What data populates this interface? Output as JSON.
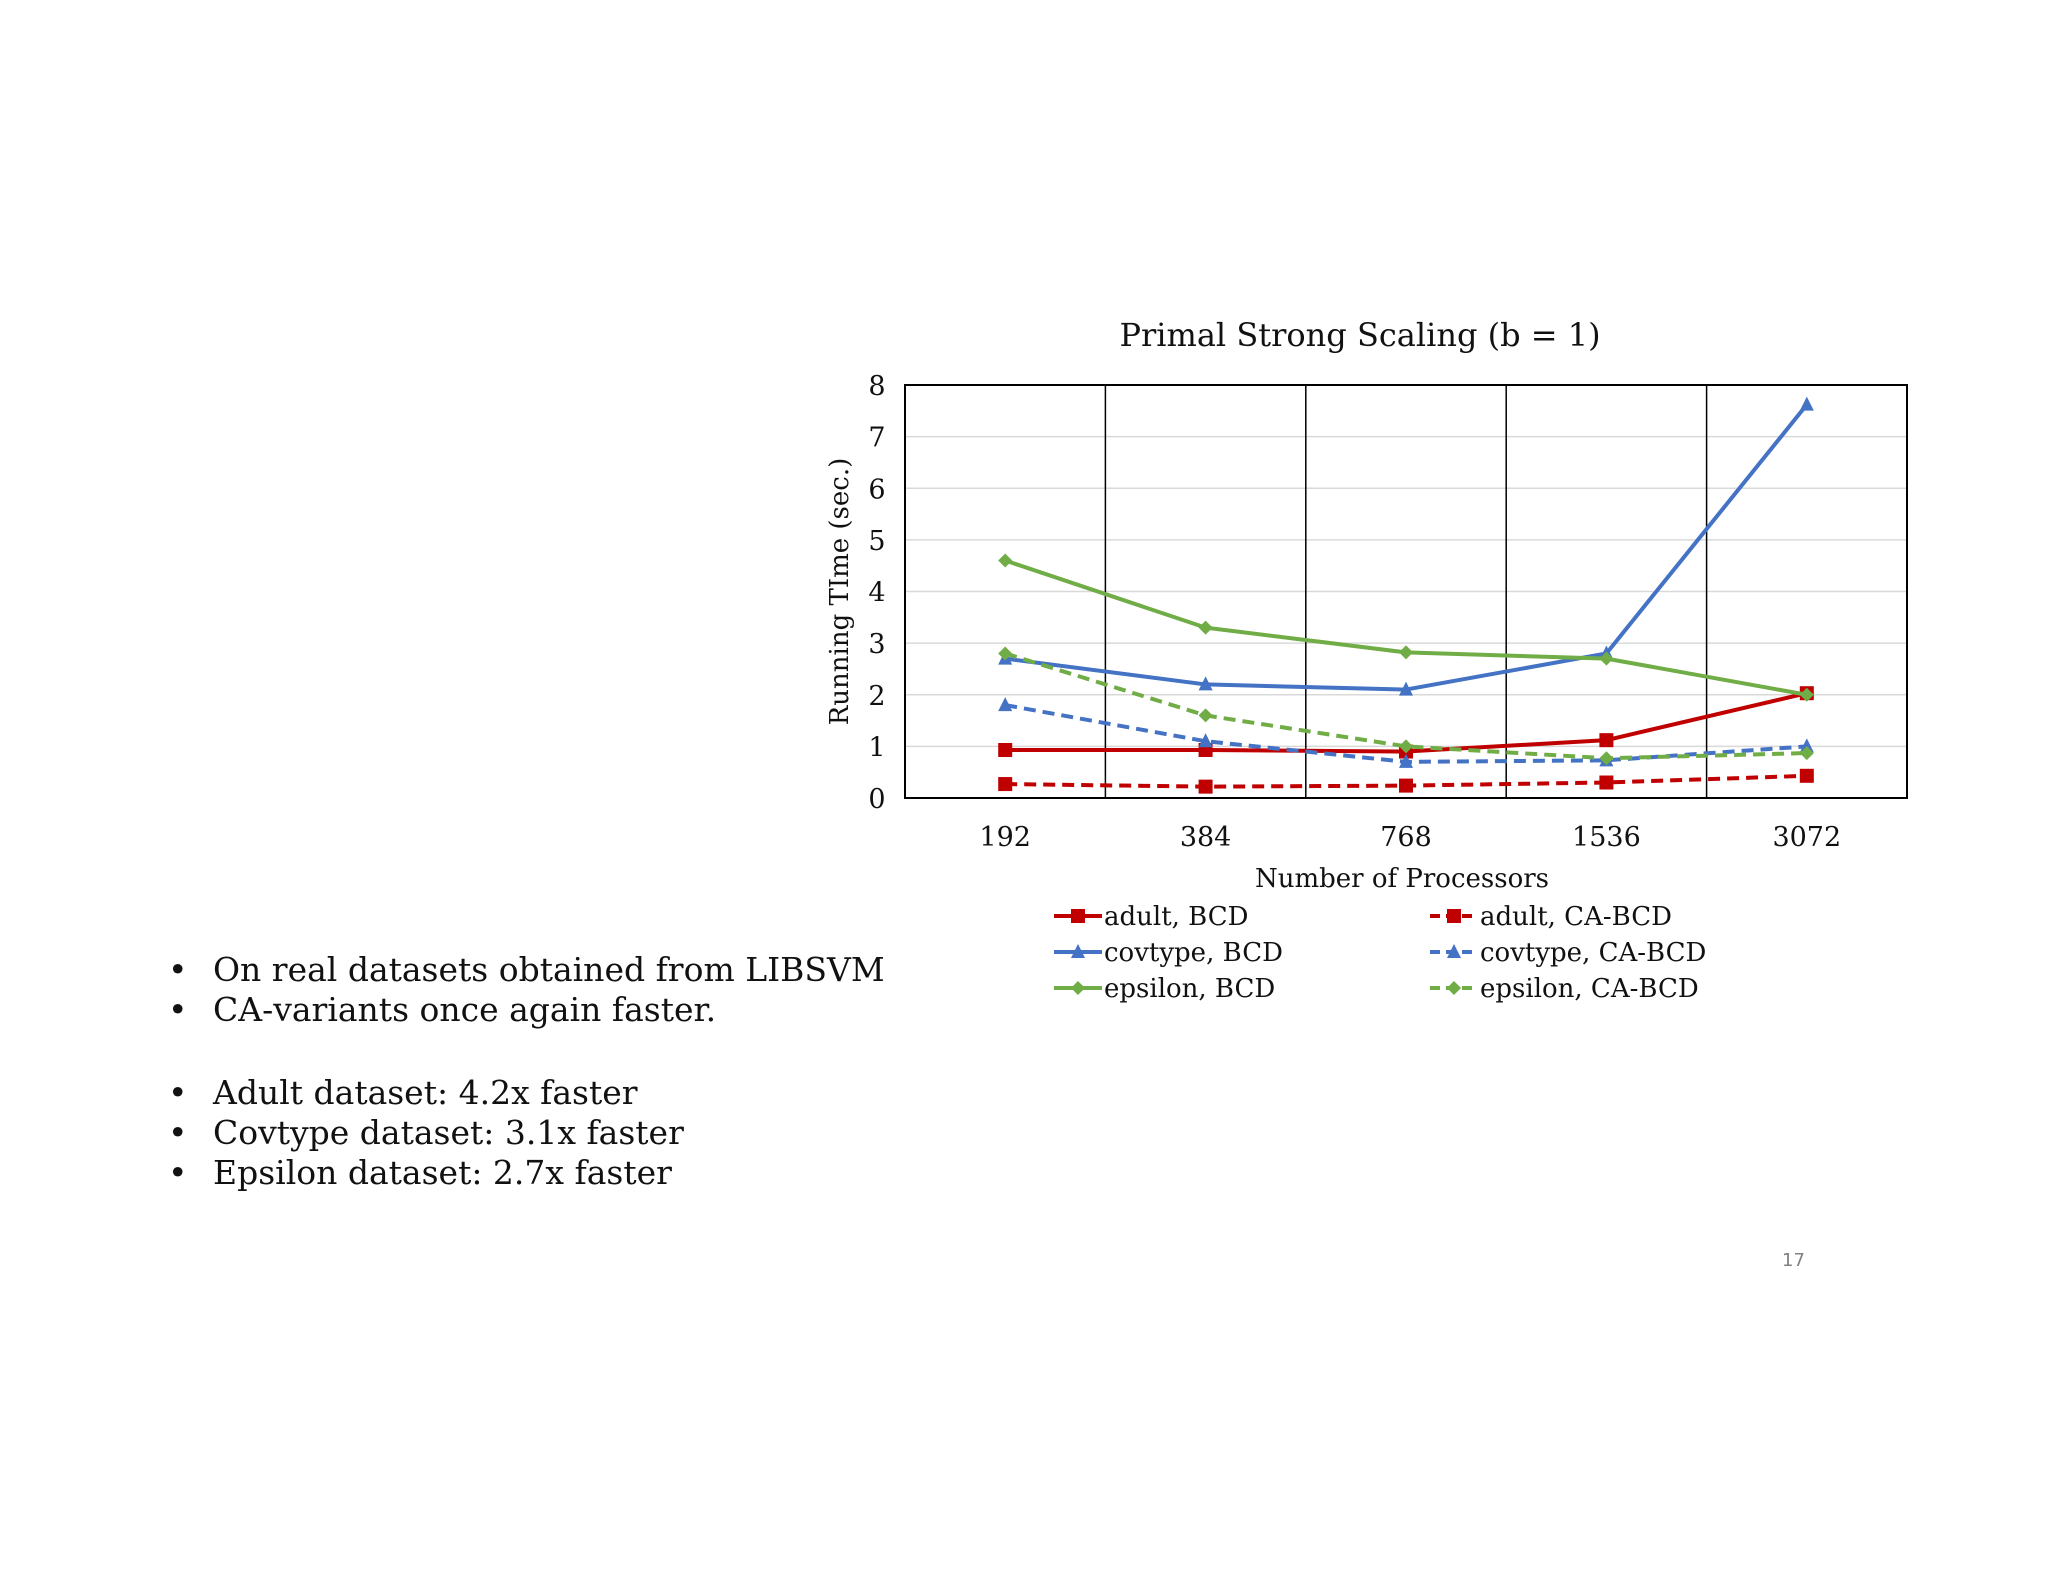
{
  "bullets": [
    "On real datasets obtained from LIBSVM",
    "CA-variants once again faster.",
    "Adult dataset: 4.2x faster",
    "Covtype dataset: 3.1x faster",
    "Epsilon dataset: 2.7x faster"
  ],
  "page_number": "17",
  "chart_data": {
    "type": "line",
    "title": "Primal Strong Scaling (b = 1)",
    "xlabel": "Number of Processors",
    "ylabel": "Running TIme (sec.)",
    "categories": [
      "192",
      "384",
      "768",
      "1536",
      "3072"
    ],
    "ylim": [
      0,
      8
    ],
    "yticks": [
      "0",
      "1",
      "2",
      "3",
      "4",
      "5",
      "6",
      "7",
      "8"
    ],
    "grid": true,
    "legend_position": "bottom",
    "series": [
      {
        "name": "adult, BCD",
        "color": "#c00000",
        "dash": false,
        "marker": "square",
        "values": [
          0.93,
          0.93,
          0.9,
          1.12,
          2.03
        ]
      },
      {
        "name": "adult, CA-BCD",
        "color": "#c00000",
        "dash": true,
        "marker": "square",
        "values": [
          0.27,
          0.22,
          0.24,
          0.3,
          0.43
        ]
      },
      {
        "name": "covtype, BCD",
        "color": "#4472c4",
        "dash": false,
        "marker": "triangle",
        "values": [
          2.7,
          2.2,
          2.1,
          2.8,
          7.62
        ]
      },
      {
        "name": "covtype, CA-BCD",
        "color": "#4472c4",
        "dash": true,
        "marker": "triangle",
        "values": [
          1.8,
          1.1,
          0.7,
          0.73,
          1.0
        ]
      },
      {
        "name": "epsilon, BCD",
        "color": "#70ad47",
        "dash": false,
        "marker": "diamond",
        "values": [
          4.6,
          3.3,
          2.82,
          2.7,
          2.0
        ]
      },
      {
        "name": "epsilon, CA-BCD",
        "color": "#70ad47",
        "dash": true,
        "marker": "diamond",
        "values": [
          2.8,
          1.6,
          1.0,
          0.77,
          0.87
        ]
      }
    ]
  }
}
